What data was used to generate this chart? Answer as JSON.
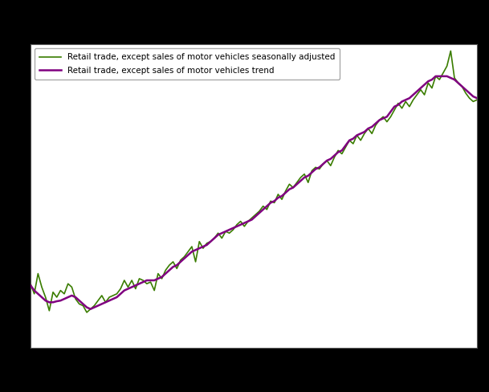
{
  "sa_label": "Retail trade, except sales of motor vehicles seasonally adjusted",
  "trend_label": "Retail trade, except sales of motor vehicles trend",
  "sa_color": "#3a7d00",
  "trend_color": "#800080",
  "sa_linewidth": 1.2,
  "trend_linewidth": 1.8,
  "background_color": "#000000",
  "plot_bg_color": "#ffffff",
  "grid_color": "#cccccc",
  "figsize": [
    6.09,
    4.88
  ],
  "dpi": 100,
  "ylim": [
    60,
    150
  ],
  "n_points": 120,
  "sa_values": [
    79.0,
    76.0,
    82.0,
    78.0,
    75.0,
    71.0,
    76.5,
    75.0,
    77.0,
    76.0,
    79.0,
    78.0,
    74.5,
    73.0,
    72.5,
    70.5,
    71.5,
    72.5,
    74.0,
    75.5,
    73.5,
    75.0,
    75.5,
    76.0,
    77.5,
    80.0,
    78.0,
    80.0,
    77.5,
    80.5,
    80.0,
    79.0,
    79.5,
    77.0,
    82.0,
    80.5,
    83.0,
    84.5,
    85.5,
    83.5,
    86.0,
    87.0,
    88.5,
    90.0,
    85.5,
    91.5,
    89.5,
    91.0,
    91.5,
    92.5,
    94.0,
    92.5,
    94.5,
    94.0,
    95.0,
    96.5,
    97.5,
    96.0,
    97.5,
    98.5,
    99.5,
    100.5,
    102.0,
    101.0,
    103.5,
    103.0,
    105.5,
    104.0,
    106.5,
    108.5,
    107.5,
    109.0,
    110.5,
    111.5,
    109.0,
    112.5,
    113.5,
    113.0,
    114.5,
    115.5,
    114.0,
    116.5,
    118.5,
    117.5,
    119.5,
    121.5,
    120.5,
    123.0,
    121.5,
    123.5,
    125.0,
    123.5,
    126.0,
    127.5,
    128.5,
    127.0,
    128.5,
    130.5,
    132.5,
    131.0,
    133.0,
    131.5,
    133.5,
    135.0,
    136.5,
    135.0,
    138.5,
    137.0,
    140.5,
    139.5,
    141.5,
    143.5,
    148.0,
    140.0,
    138.5,
    137.5,
    135.5,
    134.0,
    133.0,
    133.5
  ],
  "trend_values": [
    78.5,
    77.0,
    76.0,
    75.0,
    74.0,
    73.5,
    73.5,
    73.8,
    74.0,
    74.5,
    75.0,
    75.5,
    75.0,
    74.0,
    73.0,
    72.0,
    71.5,
    72.0,
    72.5,
    73.0,
    73.5,
    74.0,
    74.5,
    75.0,
    76.0,
    77.0,
    77.5,
    78.0,
    78.5,
    79.0,
    79.5,
    80.0,
    80.0,
    80.0,
    80.5,
    81.0,
    82.0,
    83.0,
    84.0,
    84.5,
    85.5,
    86.5,
    87.5,
    88.5,
    89.0,
    89.5,
    90.0,
    90.5,
    91.5,
    92.5,
    93.5,
    94.0,
    94.5,
    95.0,
    95.5,
    96.0,
    96.5,
    97.0,
    97.5,
    98.0,
    99.0,
    100.0,
    101.0,
    102.0,
    103.0,
    103.5,
    104.5,
    105.0,
    106.0,
    107.0,
    107.5,
    108.5,
    109.5,
    110.5,
    111.0,
    112.0,
    113.0,
    113.5,
    114.5,
    115.5,
    116.0,
    117.0,
    118.0,
    118.5,
    120.0,
    121.5,
    122.0,
    123.0,
    123.5,
    124.0,
    125.0,
    125.5,
    126.5,
    127.5,
    128.0,
    128.5,
    130.0,
    131.5,
    132.0,
    133.0,
    133.5,
    134.0,
    135.0,
    136.0,
    137.0,
    138.0,
    139.0,
    139.5,
    140.5,
    140.5,
    140.5,
    140.5,
    140.0,
    139.5,
    138.5,
    137.5,
    136.5,
    135.5,
    134.5,
    134.0
  ]
}
